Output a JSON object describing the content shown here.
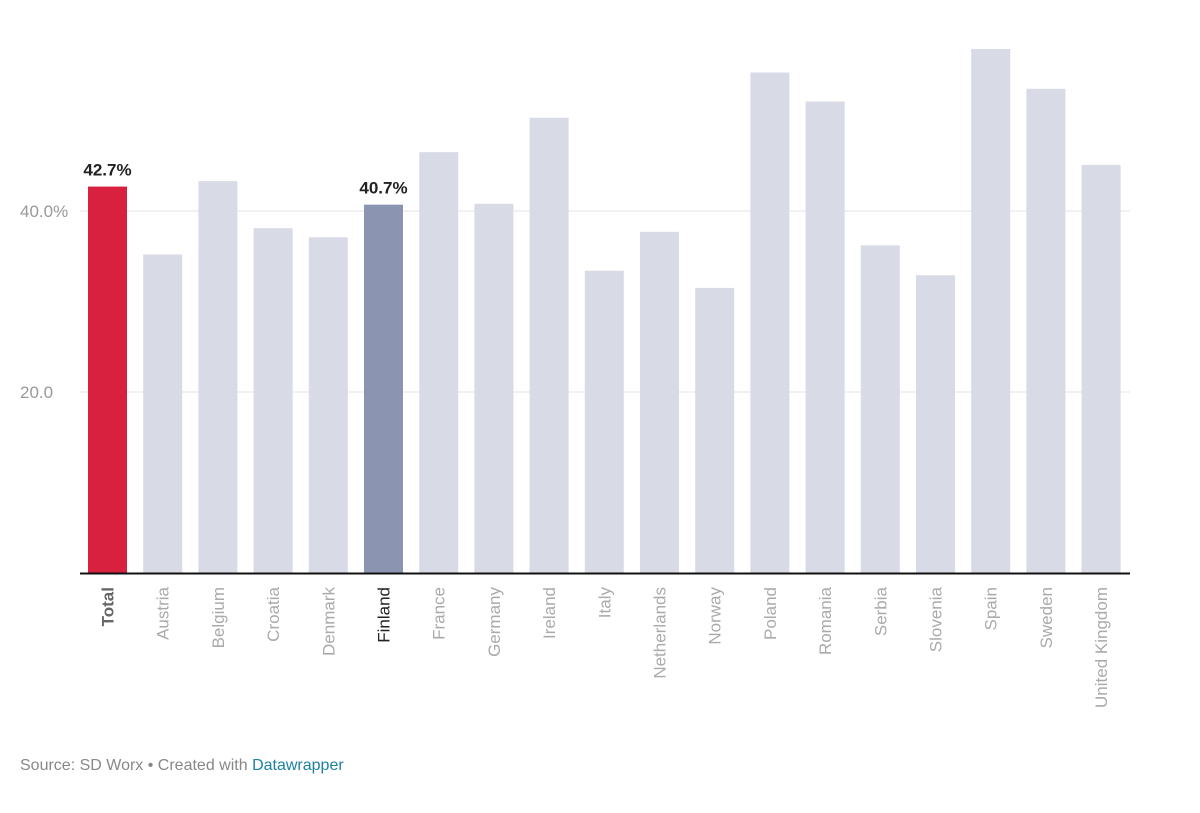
{
  "chart_data": {
    "type": "bar",
    "categories": [
      "Total",
      "Austria",
      "Belgium",
      "Croatia",
      "Denmark",
      "Finland",
      "France",
      "Germany",
      "Ireland",
      "Italy",
      "Netherlands",
      "Norway",
      "Poland",
      "Romania",
      "Serbia",
      "Slovenia",
      "Spain",
      "Sweden",
      "United Kingdom"
    ],
    "values": [
      42.7,
      35.2,
      43.3,
      38.1,
      37.1,
      40.7,
      46.5,
      40.8,
      50.3,
      33.4,
      37.7,
      31.5,
      55.3,
      52.1,
      36.2,
      32.9,
      57.9,
      53.5,
      45.1
    ],
    "highlighted": {
      "Total": {
        "color": "#d7213f",
        "label": "42.7%",
        "bold": true
      },
      "Finland": {
        "color": "#8b95b2",
        "label": "40.7%",
        "bold": false
      }
    },
    "default_color": "#d8dae6",
    "y_ticks": [
      {
        "value": 40,
        "label": "40.0%"
      },
      {
        "value": 20,
        "label": "20.0"
      }
    ],
    "ylim": [
      0,
      60
    ],
    "grid": true,
    "title": "",
    "xlabel": "",
    "ylabel": ""
  },
  "footer": {
    "source_text": "Source: SD Worx • Created with ",
    "link_text": "Datawrapper"
  }
}
